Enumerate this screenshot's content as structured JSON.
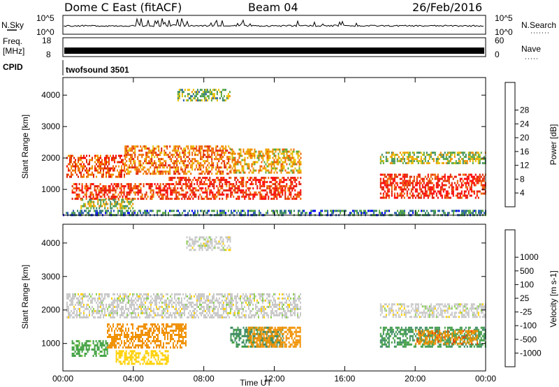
{
  "header": {
    "station": "Dome C East (fitACF)",
    "beam": "Beam 04",
    "date": "26/Feb/2016"
  },
  "side_labels": {
    "nsky": "N.Sky",
    "nsearch": "N.Search",
    "freq_line1": "Freq.",
    "freq_line2": "[MHz]",
    "nave": "Nave",
    "cpid": "CPID",
    "cpid_value": "twofsound 3501"
  },
  "noise_panel": {
    "left_ticks": [
      "10^5",
      "10^0"
    ],
    "right_ticks": [
      "10^5",
      "10^0"
    ]
  },
  "freq_panel": {
    "left_ticks": [
      "18",
      "8"
    ],
    "right_ticks": [
      "60",
      "0"
    ]
  },
  "colors": {
    "power": [
      "#0000ff",
      "#2a58b0",
      "#3c8a62",
      "#5aaa3c",
      "#e8c000",
      "#f09000",
      "#f06000",
      "#e02000",
      "#ff0000"
    ],
    "velocity": [
      "#ff0000",
      "#f04000",
      "#f09000",
      "#ffd000",
      "#c8c8c8",
      "#8ad050",
      "#40a040",
      "#3c8a62",
      "#2a58b0",
      "#1e2cb0"
    ]
  },
  "chart_data": [
    {
      "type": "heatmap",
      "panel": "power",
      "ylabel": "Slant Range [km]",
      "ylim": [
        180,
        4560
      ],
      "yticks": [
        "1000",
        "2000",
        "3000",
        "4000"
      ],
      "xticks": [
        "00:00",
        "04:00",
        "08:00",
        "12:00",
        "16:00",
        "20:00",
        "00:00"
      ],
      "colorbar_label": "Power [dB]",
      "colorbar_ticks": [
        "4",
        "8",
        "12",
        "16",
        "20",
        "24",
        "28"
      ],
      "colorbar_range": [
        0,
        32
      ],
      "echo_regions": [
        {
          "t0": 0.2,
          "t1": 3.5,
          "r0": 1400,
          "r1": 2100,
          "value": 24
        },
        {
          "t0": 3.5,
          "t1": 9.5,
          "r0": 1500,
          "r1": 2400,
          "value": 22
        },
        {
          "t0": 9.5,
          "t1": 13.5,
          "r0": 1500,
          "r1": 2300,
          "value": 18
        },
        {
          "t0": 0.5,
          "t1": 6.0,
          "r0": 700,
          "r1": 1200,
          "value": 26
        },
        {
          "t0": 6.0,
          "t1": 13.5,
          "r0": 700,
          "r1": 1400,
          "value": 27
        },
        {
          "t0": 1.0,
          "t1": 4.0,
          "r0": 400,
          "r1": 700,
          "value": 14
        },
        {
          "t0": 6.5,
          "t1": 9.5,
          "r0": 3800,
          "r1": 4200,
          "value": 12
        },
        {
          "t0": 18.0,
          "t1": 24.0,
          "r0": 700,
          "r1": 1500,
          "value": 28
        },
        {
          "t0": 18.0,
          "t1": 24.0,
          "r0": 1800,
          "r1": 2200,
          "value": 14
        },
        {
          "t0": 0.0,
          "t1": 24.0,
          "r0": 200,
          "r1": 350,
          "value": 8
        }
      ]
    },
    {
      "type": "heatmap",
      "panel": "velocity",
      "ylabel": "Slant Range [km]",
      "ylim": [
        180,
        4560
      ],
      "yticks": [
        "1000",
        "2000",
        "3000",
        "4000"
      ],
      "xticks": [
        "00:00",
        "04:00",
        "08:00",
        "12:00",
        "16:00",
        "20:00",
        "00:00"
      ],
      "xlabel": "Time UT",
      "colorbar_label": "Velocity [m s-1]",
      "colorbar_ticks": [
        "-1000",
        "-500",
        "-100",
        "-25",
        "25",
        "100",
        "500",
        "1000"
      ],
      "echo_regions": [
        {
          "t0": 0.2,
          "t1": 13.5,
          "r0": 1800,
          "r1": 2500,
          "value": 0
        },
        {
          "t0": 2.5,
          "t1": 7.0,
          "r0": 900,
          "r1": 1600,
          "value": -300
        },
        {
          "t0": 3.0,
          "t1": 6.0,
          "r0": 400,
          "r1": 800,
          "value": -60
        },
        {
          "t0": 0.5,
          "t1": 2.5,
          "r0": 600,
          "r1": 1100,
          "value": 150
        },
        {
          "t0": 9.5,
          "t1": 12.5,
          "r0": 900,
          "r1": 1500,
          "value": 600
        },
        {
          "t0": 10.5,
          "t1": 13.5,
          "r0": 900,
          "r1": 1500,
          "value": -300
        },
        {
          "t0": 7.0,
          "t1": 9.5,
          "r0": 3800,
          "r1": 4200,
          "value": 0
        },
        {
          "t0": 18.0,
          "t1": 24.0,
          "r0": 900,
          "r1": 1500,
          "value": 500
        },
        {
          "t0": 20.0,
          "t1": 23.5,
          "r0": 1000,
          "r1": 1400,
          "value": -400
        },
        {
          "t0": 18.0,
          "t1": 24.0,
          "r0": 1800,
          "r1": 2200,
          "value": 0
        }
      ]
    }
  ]
}
